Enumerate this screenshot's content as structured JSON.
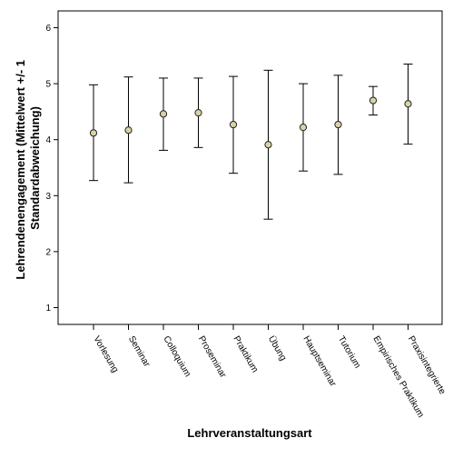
{
  "chart_data": {
    "type": "errorbar",
    "categories": [
      "Vorlesung",
      "Seminar",
      "Colloquium",
      "Proseminar",
      "Praktikum",
      "Übung",
      "Hauptseminar",
      "Tutorium",
      "Empirisches Praktikum",
      "Praxisintegrierte"
    ],
    "mean": [
      4.12,
      4.17,
      4.46,
      4.48,
      4.27,
      3.91,
      4.22,
      4.27,
      4.7,
      4.64
    ],
    "upper": [
      4.98,
      5.12,
      5.1,
      5.1,
      5.13,
      5.24,
      5.0,
      5.15,
      4.95,
      5.35
    ],
    "lower": [
      3.27,
      3.23,
      3.81,
      3.86,
      3.4,
      2.58,
      3.44,
      3.38,
      4.44,
      3.92
    ],
    "xlabel": "Lehrveranstaltungsart",
    "ylabel_lines": [
      "Lehrendenengagement (Mittelwert +/- 1",
      "Standardabweichung)"
    ],
    "ylim": [
      0.7,
      6.3
    ],
    "yticks": [
      1,
      2,
      3,
      4,
      5,
      6
    ],
    "grid": false,
    "colors": {
      "marker_fill": "#d8d2a8",
      "marker_stroke": "#222222",
      "line": "#000000"
    }
  }
}
